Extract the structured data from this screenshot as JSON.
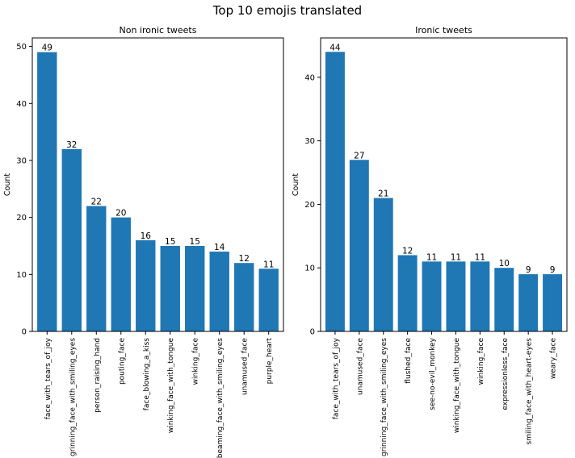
{
  "figure": {
    "suptitle": "Top 10 emojis translated"
  },
  "chart_data": [
    {
      "type": "bar",
      "title": "Non ironic tweets",
      "ylabel": "Count",
      "xlabel": "",
      "ylim": [
        0,
        51.5
      ],
      "yticks": [
        0,
        10,
        20,
        30,
        40,
        50
      ],
      "categories": [
        "face_with_tears_of_joy",
        "grinning_face_with_smiling_eyes",
        "person_raising_hand",
        "pouting_face",
        "face_blowing_a_kiss",
        "winking_face_with_tongue",
        "winking_face",
        "beaming_face_with_smiling_eyes",
        "unamused_face",
        "purple_heart"
      ],
      "values": [
        49,
        32,
        22,
        20,
        16,
        15,
        15,
        14,
        12,
        11
      ],
      "color": "#1f77b4",
      "grid": false
    },
    {
      "type": "bar",
      "title": "Ironic tweets",
      "ylabel": "Count",
      "xlabel": "",
      "ylim": [
        0,
        46.2
      ],
      "yticks": [
        0,
        10,
        20,
        30,
        40
      ],
      "categories": [
        "face_with_tears_of_joy",
        "unamused_face",
        "grinning_face_with_smiling_eyes",
        "flushed_face",
        "see-no-evil_monkey",
        "winking_face_with_tongue",
        "winking_face",
        "expressionless_face",
        "smiling_face_with_heart-eyes",
        "weary_face"
      ],
      "values": [
        44,
        27,
        21,
        12,
        11,
        11,
        11,
        10,
        9,
        9
      ],
      "color": "#1f77b4",
      "grid": false
    }
  ]
}
